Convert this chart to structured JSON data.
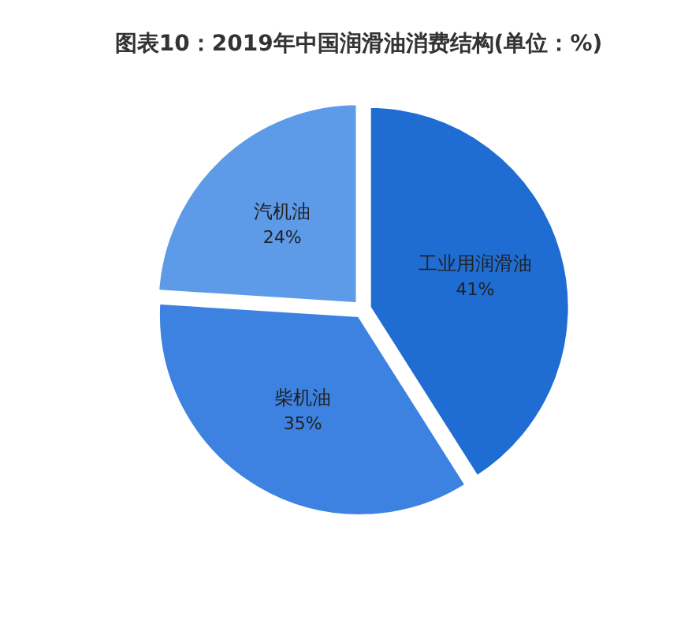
{
  "chart_data": {
    "type": "pie",
    "title": "图表10：2019年中国润滑油消费结构(单位：%)",
    "categories": [
      "工业用润滑油",
      "柴机油",
      "汽机油"
    ],
    "values": [
      41,
      35,
      24
    ],
    "value_labels": [
      "41%",
      "35%",
      "24%"
    ],
    "colors": [
      "#1f6dd3",
      "#3d82e0",
      "#5d9be8"
    ],
    "legend": false
  }
}
